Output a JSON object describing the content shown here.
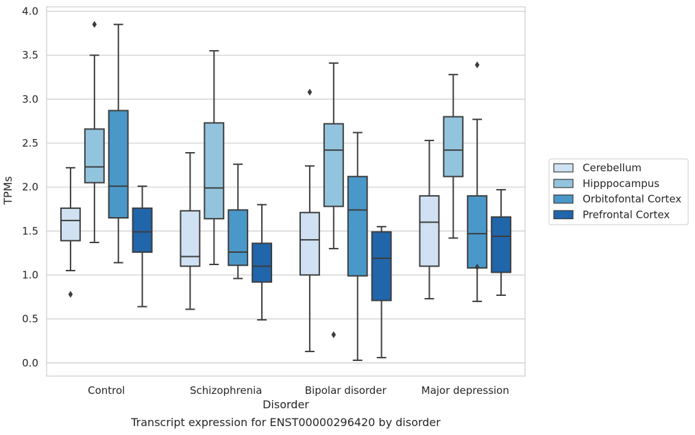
{
  "chart_data": {
    "type": "box",
    "title": "",
    "caption": "Transcript expression for ENST00000296420 by disorder",
    "xlabel": "Disorder",
    "ylabel": "TPMs",
    "ylim": [
      -0.15,
      4.05
    ],
    "yticks": [
      "0.0",
      "0.5",
      "1.0",
      "1.5",
      "2.0",
      "2.5",
      "3.0",
      "3.5",
      "4.0"
    ],
    "grid": "horizontal",
    "legend_position": "right",
    "categories": [
      "Control",
      "Schizophrenia",
      "Bipolar disorder",
      "Major depression"
    ],
    "series": [
      {
        "name": "Cerebellum",
        "color": "#cfe1f2",
        "boxes": [
          {
            "whislo": 1.05,
            "q1": 1.39,
            "med": 1.62,
            "q3": 1.76,
            "whishi": 2.22,
            "fliers": [
              0.78
            ]
          },
          {
            "whislo": 0.61,
            "q1": 1.1,
            "med": 1.21,
            "q3": 1.73,
            "whishi": 2.39,
            "fliers": []
          },
          {
            "whislo": 0.13,
            "q1": 1.0,
            "med": 1.4,
            "q3": 1.71,
            "whishi": 2.24,
            "fliers": [
              3.08
            ]
          },
          {
            "whislo": 0.73,
            "q1": 1.1,
            "med": 1.6,
            "q3": 1.9,
            "whishi": 2.53,
            "fliers": []
          }
        ]
      },
      {
        "name": "Hipppocampus",
        "color": "#93c4de",
        "boxes": [
          {
            "whislo": 1.37,
            "q1": 2.05,
            "med": 2.23,
            "q3": 2.66,
            "whishi": 3.5,
            "fliers": [
              3.85
            ]
          },
          {
            "whislo": 1.12,
            "q1": 1.64,
            "med": 1.99,
            "q3": 2.73,
            "whishi": 3.55,
            "fliers": []
          },
          {
            "whislo": 1.3,
            "q1": 1.78,
            "med": 2.42,
            "q3": 2.72,
            "whishi": 3.41,
            "fliers": [
              0.32
            ]
          },
          {
            "whislo": 1.42,
            "q1": 2.12,
            "med": 2.42,
            "q3": 2.8,
            "whishi": 3.28,
            "fliers": []
          }
        ]
      },
      {
        "name": "Orbitofontal Cortex",
        "color": "#4a98c9",
        "boxes": [
          {
            "whislo": 1.14,
            "q1": 1.65,
            "med": 2.01,
            "q3": 2.87,
            "whishi": 3.85,
            "fliers": []
          },
          {
            "whislo": 0.96,
            "q1": 1.11,
            "med": 1.26,
            "q3": 1.74,
            "whishi": 2.26,
            "fliers": []
          },
          {
            "whislo": 0.03,
            "q1": 0.99,
            "med": 1.74,
            "q3": 2.12,
            "whishi": 2.62,
            "fliers": []
          },
          {
            "whislo": 0.7,
            "q1": 1.08,
            "med": 1.47,
            "q3": 1.9,
            "whishi": 2.77,
            "fliers": [
              1.09,
              3.39
            ]
          }
        ]
      },
      {
        "name": "Prefrontal Cortex",
        "color": "#2165ab",
        "boxes": [
          {
            "whislo": 0.64,
            "q1": 1.26,
            "med": 1.49,
            "q3": 1.76,
            "whishi": 2.01,
            "fliers": []
          },
          {
            "whislo": 0.49,
            "q1": 0.92,
            "med": 1.1,
            "q3": 1.36,
            "whishi": 1.8,
            "fliers": []
          },
          {
            "whislo": 0.06,
            "q1": 0.71,
            "med": 1.19,
            "q3": 1.49,
            "whishi": 1.55,
            "fliers": []
          },
          {
            "whislo": 0.77,
            "q1": 1.03,
            "med": 1.44,
            "q3": 1.66,
            "whishi": 1.97,
            "fliers": []
          }
        ]
      }
    ]
  }
}
